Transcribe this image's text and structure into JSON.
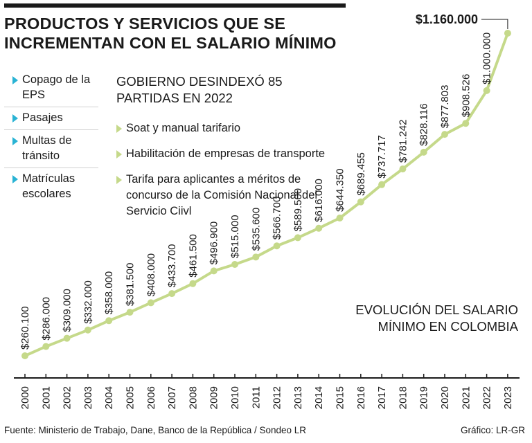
{
  "title_line1": "PRODUCTOS Y SERVICIOS QUE SE",
  "title_line2": "INCREMENTAN CON EL SALARIO MÍNIMO",
  "left_items": [
    "Copago de la EPS",
    "Pasajes",
    "Multas de tránsito",
    "Matrículas escolares"
  ],
  "gov_title_line1": "GOBIERNO DESINDEXÓ 85",
  "gov_title_line2": "PARTIDAS EN 2022",
  "right_items": [
    "Soat y manual tarifario",
    "Habilitación de empresas de transporte",
    "Tarifa para aplicantes a méritos de concurso de la Comisión Nacional del Servicio Ciivl"
  ],
  "chart_label_line1": "EVOLUCIÓN DEL SALARIO",
  "chart_label_line2": "MÍNIMO EN COLOMBIA",
  "source": "Fuente: Ministerio de Trabajo, Dane, Banco de la República / Sondeo LR",
  "credit": "Gráfico: LR-GR",
  "colors": {
    "line": "#c5d98a",
    "left_bullet": "#29b3d4",
    "text": "#1a1a1a"
  },
  "chart_data": {
    "type": "line",
    "x": [
      "2000",
      "2001",
      "2002",
      "2003",
      "2004",
      "2005",
      "2006",
      "2007",
      "2008",
      "2009",
      "2010",
      "2011",
      "2012",
      "2013",
      "2014",
      "2015",
      "2016",
      "2017",
      "2018",
      "2019",
      "2020",
      "2021",
      "2022",
      "2023"
    ],
    "values": [
      260100,
      286000,
      309000,
      332000,
      358000,
      381500,
      408000,
      433700,
      461500,
      496900,
      515000,
      535600,
      566700,
      589500,
      616000,
      644350,
      689455,
      737717,
      781242,
      828116,
      877803,
      908526,
      1000000,
      1160000
    ],
    "labels": [
      "$260.100",
      "$286.000",
      "$309.000",
      "$332.000",
      "$358.000",
      "$381.500",
      "$408.000",
      "$433.700",
      "$461.500",
      "$496.900",
      "$515.000",
      "$535.600",
      "$566.700",
      "$589.500",
      "$616.000",
      "$644.350",
      "$689.455",
      "$737.717",
      "$781.242",
      "$828.116",
      "$877.803",
      "$908.526",
      "$1.000.000",
      "$1.160.000"
    ],
    "title": "EVOLUCIÓN DEL SALARIO MÍNIMO EN COLOMBIA",
    "grid": false
  }
}
